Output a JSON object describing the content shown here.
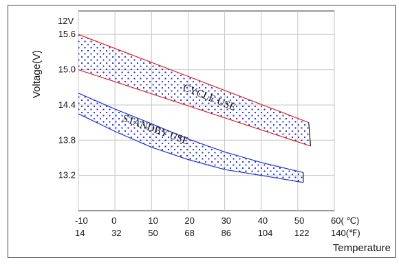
{
  "chart_data": {
    "type": "area",
    "y_axis_unit_note": "12V",
    "xlabel": "Temperature",
    "ylabel": "Voltage(V)",
    "x_celsius_ticks": [
      "-10",
      "0",
      "10",
      "20",
      "30",
      "40",
      "50",
      "60( ℃)"
    ],
    "x_fahrenheit_ticks": [
      "14",
      "32",
      "50",
      "68",
      "86",
      "104",
      "122",
      "140(℉)"
    ],
    "y_ticks": [
      "15.6",
      "15.0",
      "14.4",
      "13.8",
      "13.2"
    ],
    "xlim": [
      -10,
      60
    ],
    "ylim": [
      12.6,
      16.0
    ],
    "grid": true,
    "series": [
      {
        "name": "CYCLE USE",
        "color": "#e02020",
        "upper": {
          "x": [
            -10,
            53
          ],
          "y": [
            15.6,
            14.1
          ]
        },
        "lower": {
          "x": [
            -10,
            53.5
          ],
          "y": [
            15.0,
            13.7
          ]
        }
      },
      {
        "name": "STANDBY USE",
        "color": "#1f2fd0",
        "upper": {
          "x": [
            -10,
            0,
            10,
            20,
            30,
            40,
            51.5
          ],
          "y": [
            14.6,
            14.33,
            14.08,
            13.82,
            13.6,
            13.42,
            13.25
          ]
        },
        "lower": {
          "x": [
            -10,
            0,
            10,
            20,
            30,
            40,
            51.5
          ],
          "y": [
            14.25,
            13.95,
            13.68,
            13.47,
            13.3,
            13.2,
            13.08
          ]
        }
      }
    ]
  }
}
